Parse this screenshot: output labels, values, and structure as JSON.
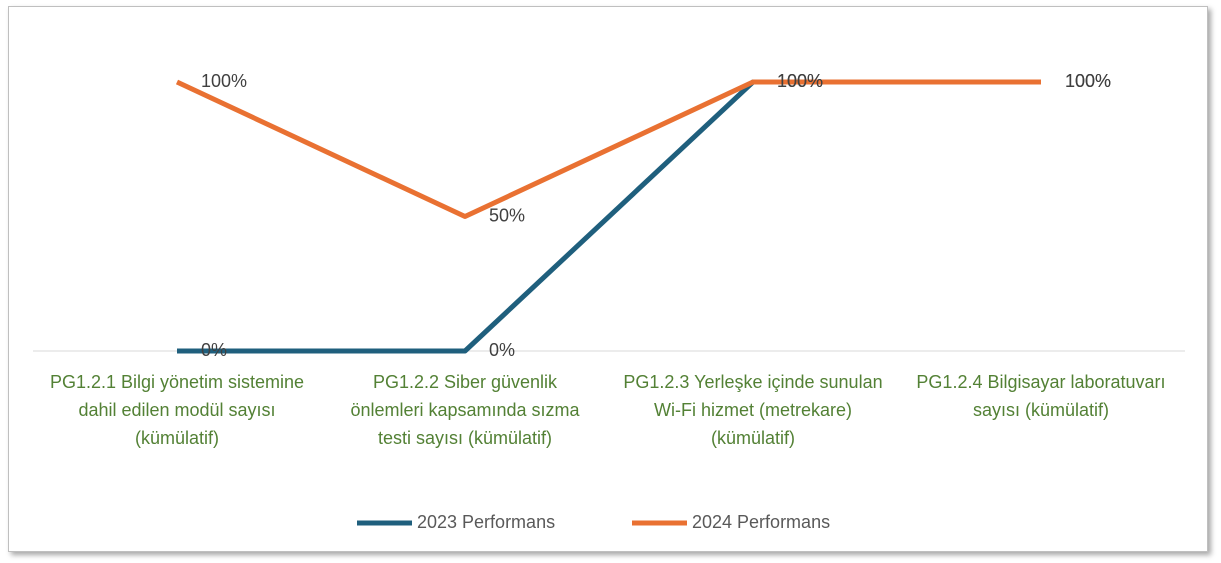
{
  "chart_data": {
    "type": "line",
    "categories": [
      "PG1.2.1  Bilgi yönetim sistemine dahil edilen modül sayısı (kümülatif)",
      "PG1.2.2 Siber güvenlik önlemleri kapsamında sızma testi sayısı (kümülatif)",
      "PG1.2.3 Yerleşke içinde sunulan  Wi-Fi hizmet (metrekare) (kümülatif)",
      "PG1.2.4 Bilgisayar laboratuvarı sayısı (kümülatif)"
    ],
    "series": [
      {
        "name": "2023 Performans",
        "color": "#1f5f7d",
        "values": [
          0,
          0,
          100,
          100
        ],
        "value_labels": [
          "0%",
          "0%",
          "100%",
          "100%"
        ]
      },
      {
        "name": "2024 Performans",
        "color": "#e97132",
        "values": [
          100,
          50,
          100,
          100
        ],
        "value_labels": [
          "100%",
          "50%",
          "100%",
          "100%"
        ]
      }
    ],
    "ylim": [
      0,
      100
    ],
    "legend": "bottom"
  }
}
